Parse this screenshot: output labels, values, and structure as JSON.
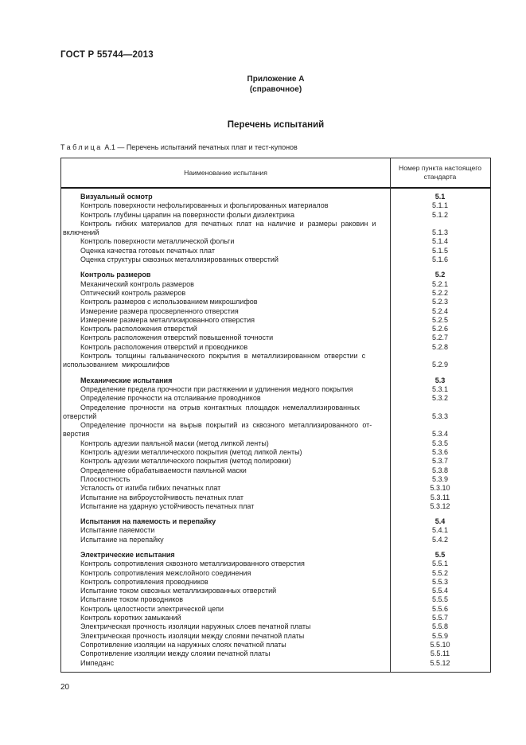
{
  "page": {
    "doc_code": "ГОСТ Р 55744—2013",
    "appendix_title": "Приложение А",
    "appendix_note": "(справочное)",
    "section_title": "Перечень испытаний",
    "table_caption_word": "Таблица",
    "table_caption_rest": "А.1 — Перечень испытаний печатных плат и тест-купонов",
    "page_number": "20"
  },
  "table": {
    "columns": {
      "name": "Наименование испытания",
      "clause": "Номер пункта настоящего стандарта"
    },
    "sections": [
      {
        "title": "Визуальный осмотр",
        "number": "5.1",
        "items": [
          {
            "name": "Контроль поверхности нефольгированных и фольгированных материалов",
            "number": "5.1.1"
          },
          {
            "name": "Контроль глубины царапин на поверхности фольги диэлектрика",
            "number": "5.1.2"
          },
          {
            "name": "Контроль гибких материалов для печатных плат на наличие и размеры раковин и\nвключений",
            "number": "5.1.3"
          },
          {
            "name": "Контроль поверхности металлической фольги",
            "number": "5.1.4"
          },
          {
            "name": "Оценка качества готовых печатных плат",
            "number": "5.1.5"
          },
          {
            "name": "Оценка структуры сквозных металлизированных отверстий",
            "number": "5.1.6"
          }
        ]
      },
      {
        "title": "Контроль размеров",
        "number": "5.2",
        "items": [
          {
            "name": "Механический контроль размеров",
            "number": "5.2.1"
          },
          {
            "name": "Оптический контроль размеров",
            "number": "5.2.2"
          },
          {
            "name": "Контроль размеров с использованием микрошлифов",
            "number": "5.2.3"
          },
          {
            "name": "Измерение размера просверленного отверстия",
            "number": "5.2.4"
          },
          {
            "name": "Измерение размера металлизированного отверстия",
            "number": "5.2.5"
          },
          {
            "name": "Контроль расположения отверстий",
            "number": "5.2.6"
          },
          {
            "name": "Контроль расположения отверстий повышенной точности",
            "number": "5.2.7"
          },
          {
            "name": "Контроль расположения отверстий и проводников",
            "number": "5.2.8"
          },
          {
            "name": "Контроль толщины гальванического покрытия в металлизированном отверстии с\nиспользованием микрошлифов",
            "number": "5.2.9"
          }
        ]
      },
      {
        "title": "Механические испытания",
        "number": "5.3",
        "items": [
          {
            "name": "Определение предела прочности при растяжении и удлинения медного покрытия",
            "number": "5.3.1"
          },
          {
            "name": "Определение прочности на отслаивание проводников",
            "number": "5.3.2"
          },
          {
            "name": "Определение прочности на отрыв контактных площадок немелаллизированных\nотверстий",
            "number": "5.3.3"
          },
          {
            "name": "Определение прочности на вырыв покрытий из сквозного металлизированного от-\nверстия",
            "number": "5.3.4"
          },
          {
            "name": "Контроль адгезии паяльной маски (метод липкой ленты)",
            "number": "5.3.5"
          },
          {
            "name": "Контроль адгезии металлического покрытия (метод липкой ленты)",
            "number": "5.3.6"
          },
          {
            "name": "Контроль адгезии металлического покрытия (метод полировки)",
            "number": "5.3.7"
          },
          {
            "name": "Определение обрабатываемости паяльной маски",
            "number": "5.3.8"
          },
          {
            "name": "Плоскостность",
            "number": "5.3.9"
          },
          {
            "name": "Усталость от изгиба гибких печатных плат",
            "number": "5.3.10"
          },
          {
            "name": "Испытание на виброустойчивость печатных плат",
            "number": "5.3.11"
          },
          {
            "name": "Испытание на ударную устойчивость печатных плат",
            "number": "5.3.12"
          }
        ]
      },
      {
        "title": "Испытания на паяемость и перепайку",
        "number": "5.4",
        "items": [
          {
            "name": "Испытание паяемости",
            "number": "5.4.1"
          },
          {
            "name": "Испытание на перепайку",
            "number": "5.4.2"
          }
        ]
      },
      {
        "title": "Электрические испытания",
        "number": "5.5",
        "items": [
          {
            "name": "Контроль сопротивления сквозного металлизированного отверстия",
            "number": "5.5.1"
          },
          {
            "name": "Контроль сопротивления межслойного соединения",
            "number": "5.5.2"
          },
          {
            "name": "Контроль сопротивления проводников",
            "number": "5.5.3"
          },
          {
            "name": "Испытание током сквозных металлизированных отверстий",
            "number": "5.5.4"
          },
          {
            "name": "Испытание током проводников",
            "number": "5.5.5"
          },
          {
            "name": "Контроль целостности электрической цепи",
            "number": "5.5.6"
          },
          {
            "name": "Контроль коротких замыканий",
            "number": "5.5.7"
          },
          {
            "name": "Электрическая прочность изоляции наружных слоев печатной платы",
            "number": "5.5.8"
          },
          {
            "name": "Электрическая прочность изоляции между слоями печатной платы",
            "number": "5.5.9"
          },
          {
            "name": "Сопротивление изоляции на наружных слоях печатной платы",
            "number": "5.5.10"
          },
          {
            "name": "Сопротивление изоляции между слоями печатной платы",
            "number": "5.5.11"
          },
          {
            "name": "Импеданс",
            "number": "5.5.12"
          }
        ]
      }
    ]
  }
}
